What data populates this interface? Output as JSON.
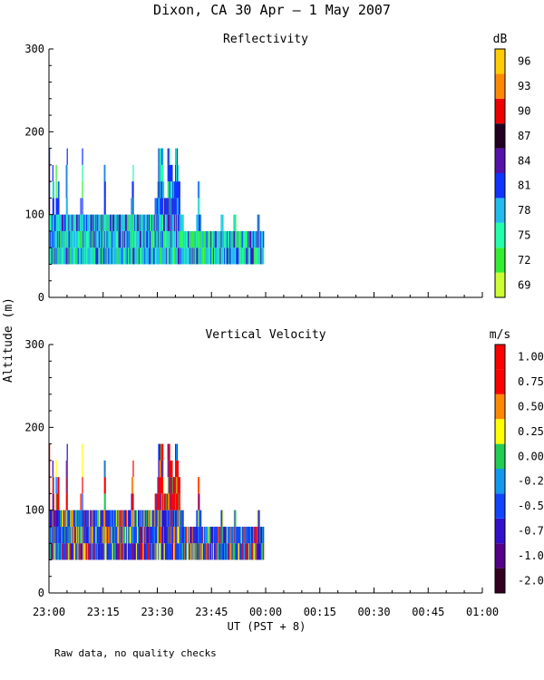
{
  "figure": {
    "title": "Dixon, CA 30 Apr —  1 May 2007",
    "shared_ylabel": "Altitude (m)",
    "shared_xlabel": "UT  (PST + 8)",
    "note": "Raw data, no quality checks",
    "x_ticks": [
      "23:00",
      "23:15",
      "23:30",
      "23:45",
      "00:00",
      "00:15",
      "00:30",
      "00:45",
      "01:00"
    ]
  },
  "chart_data": [
    {
      "type": "heatmap",
      "title": "Reflectivity",
      "xlabel": "UT  (PST + 8)",
      "ylabel": "Altitude (m)",
      "x_range_minutes": [
        0,
        120
      ],
      "x_start": "23:00",
      "ylim": [
        0,
        300
      ],
      "y_ticks": [
        0,
        100,
        200,
        300
      ],
      "data_extent": {
        "x_minutes": [
          0,
          59.5
        ],
        "y_m": [
          40,
          180
        ]
      },
      "colorbar": {
        "unit": "dB",
        "labels": [
          "69",
          "72",
          "75",
          "78",
          "81",
          "84",
          "87",
          "90",
          "93",
          "96"
        ],
        "colors": [
          "#ccff33",
          "#33ee33",
          "#22ffaa",
          "#22bbee",
          "#1133ff",
          "#5511aa",
          "#220022",
          "#ee0000",
          "#ff8800",
          "#ffcc00"
        ]
      },
      "column_tops_m": [
        180,
        100,
        100,
        100,
        160,
        140,
        100,
        100,
        160,
        120,
        140,
        140,
        100,
        100,
        100,
        100,
        100,
        100,
        100,
        100,
        160,
        180,
        100,
        100,
        100,
        100,
        100,
        100,
        100,
        100,
        100,
        100,
        100,
        100,
        100,
        100,
        100,
        120,
        100,
        180,
        100,
        100,
        100,
        100,
        100,
        100,
        100,
        100,
        100,
        100,
        100,
        100,
        100,
        100,
        100,
        100,
        100,
        100,
        100,
        100,
        100,
        100,
        100,
        100,
        100,
        160,
        160,
        100,
        100,
        100,
        100,
        100,
        100,
        100,
        100,
        100,
        100,
        100,
        100,
        100,
        100,
        100,
        100,
        100,
        100,
        100,
        100,
        100,
        100,
        100,
        100,
        100,
        100,
        100,
        100,
        100,
        100,
        120,
        140,
        160,
        100,
        100,
        100,
        100,
        100,
        100,
        100,
        100,
        100,
        100,
        100,
        100,
        100,
        100,
        100,
        100,
        100,
        100,
        100,
        100,
        100,
        100,
        100,
        100,
        100,
        120,
        120,
        120,
        140,
        180,
        180,
        180,
        180,
        180,
        180,
        140,
        120,
        120,
        120,
        120,
        180,
        180,
        180,
        160,
        160,
        160,
        140,
        140,
        140,
        180,
        180,
        180,
        160,
        140,
        140,
        100,
        100,
        100,
        100,
        80,
        80,
        80,
        80,
        80,
        80,
        80,
        80,
        80,
        80,
        80,
        80,
        80,
        80,
        80,
        100,
        100,
        140,
        140,
        100,
        100,
        80,
        80,
        80,
        80,
        80,
        80,
        80,
        80,
        80,
        80,
        80,
        80,
        80,
        80,
        80,
        80,
        80,
        80,
        80,
        80,
        80,
        80,
        80,
        100,
        100,
        100,
        80,
        80,
        80,
        80,
        80,
        80,
        80,
        80,
        80,
        80,
        80,
        80,
        100,
        100,
        100,
        80,
        80,
        80,
        80,
        80,
        80,
        80,
        80,
        80,
        80,
        80,
        80,
        80,
        80,
        80,
        80,
        80,
        80,
        80,
        80,
        80,
        80,
        80,
        80,
        80,
        100,
        100,
        100,
        80,
        80,
        80,
        80,
        80
      ]
    },
    {
      "type": "heatmap",
      "title": "Vertical Velocity",
      "xlabel": "UT  (PST + 8)",
      "ylabel": "Altitude (m)",
      "x_range_minutes": [
        0,
        120
      ],
      "x_start": "23:00",
      "ylim": [
        0,
        300
      ],
      "y_ticks": [
        0,
        100,
        200,
        300
      ],
      "data_extent": {
        "x_minutes": [
          0,
          59.5
        ],
        "y_m": [
          40,
          180
        ]
      },
      "colorbar": {
        "unit": "m/s",
        "labels": [
          "-2.00",
          "-1.00",
          "-0.75",
          "-0.50",
          "-0.25",
          "0.00",
          "0.25",
          "0.50",
          "0.75",
          "1.00"
        ],
        "colors": [
          "#330022",
          "#550088",
          "#3311cc",
          "#1144ff",
          "#1199ee",
          "#22cc55",
          "#ffff00",
          "#ff8800",
          "#ff0000",
          "#ff0000"
        ]
      },
      "column_tops_m": [
        180,
        100,
        100,
        100,
        160,
        140,
        100,
        100,
        160,
        120,
        140,
        140,
        100,
        100,
        100,
        100,
        100,
        100,
        100,
        100,
        160,
        180,
        100,
        100,
        100,
        100,
        100,
        100,
        100,
        100,
        100,
        100,
        100,
        100,
        100,
        100,
        100,
        120,
        100,
        180,
        100,
        100,
        100,
        100,
        100,
        100,
        100,
        100,
        100,
        100,
        100,
        100,
        100,
        100,
        100,
        100,
        100,
        100,
        100,
        100,
        100,
        100,
        100,
        100,
        100,
        160,
        160,
        100,
        100,
        100,
        100,
        100,
        100,
        100,
        100,
        100,
        100,
        100,
        100,
        100,
        100,
        100,
        100,
        100,
        100,
        100,
        100,
        100,
        100,
        100,
        100,
        100,
        100,
        100,
        100,
        100,
        100,
        120,
        140,
        160,
        100,
        100,
        100,
        100,
        100,
        100,
        100,
        100,
        100,
        100,
        100,
        100,
        100,
        100,
        100,
        100,
        100,
        100,
        100,
        100,
        100,
        100,
        100,
        100,
        100,
        120,
        120,
        120,
        140,
        180,
        180,
        180,
        180,
        180,
        180,
        140,
        120,
        120,
        120,
        120,
        180,
        180,
        180,
        160,
        160,
        160,
        140,
        140,
        140,
        180,
        180,
        180,
        160,
        140,
        140,
        100,
        100,
        100,
        100,
        80,
        80,
        80,
        80,
        80,
        80,
        80,
        80,
        80,
        80,
        80,
        80,
        80,
        80,
        80,
        100,
        100,
        140,
        140,
        100,
        100,
        80,
        80,
        80,
        80,
        80,
        80,
        80,
        80,
        80,
        80,
        80,
        80,
        80,
        80,
        80,
        80,
        80,
        80,
        80,
        80,
        80,
        80,
        80,
        100,
        100,
        100,
        80,
        80,
        80,
        80,
        80,
        80,
        80,
        80,
        80,
        80,
        80,
        80,
        100,
        100,
        100,
        80,
        80,
        80,
        80,
        80,
        80,
        80,
        80,
        80,
        80,
        80,
        80,
        80,
        80,
        80,
        80,
        80,
        80,
        80,
        80,
        80,
        80,
        80,
        80,
        80,
        100,
        100,
        100,
        80,
        80,
        80,
        80,
        80
      ]
    }
  ]
}
